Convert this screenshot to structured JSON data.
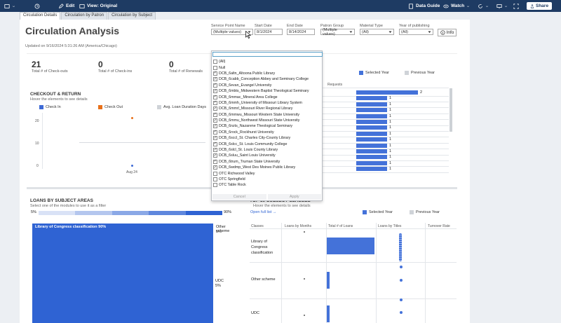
{
  "topbar": {
    "edit_label": "Edit",
    "view_label": "View: Original",
    "data_guide_label": "Data Guide",
    "watch_label": "Watch",
    "share_label": "Share"
  },
  "tabs": [
    {
      "label": "Circulation Details"
    },
    {
      "label": "Circulation by Patron"
    },
    {
      "label": "Circulation by Subject"
    }
  ],
  "header": {
    "title": "Circulation Analysis",
    "updated": "Updated on 9/16/2024 5:31:26 AM (America/Chicago)",
    "info_label": "Info"
  },
  "filters": {
    "service_point": {
      "label": "Service Point Name",
      "value": "(Multiple values)"
    },
    "start_date": {
      "label": "Start Date",
      "value": "8/1/2024"
    },
    "end_date": {
      "label": "End Date",
      "value": "8/14/2024"
    },
    "patron_group": {
      "label": "Patron Group",
      "value": "(Multiple values)"
    },
    "material_type": {
      "label": "Material Type",
      "value": "(All)"
    },
    "year_publishing": {
      "label": "Year of publishing",
      "value": "(All)"
    }
  },
  "kpis": [
    {
      "value": "21",
      "caption": "Total # of Check-outs"
    },
    {
      "value": "0",
      "caption": "Total # of Check-ins"
    },
    {
      "value": "0",
      "caption": "Total # of Renewals"
    }
  ],
  "checkout_return": {
    "title": "CHECKOUT & RETURN",
    "subtitle": "Hover the elements to see details",
    "legend": [
      {
        "label": "Check In",
        "color": "#3e6ad6"
      },
      {
        "label": "Check Out",
        "color": "#e8701a"
      },
      {
        "label": "Avg. Loan Duration Days",
        "color": "#cfd3d8"
      }
    ],
    "y_ticks": [
      "20",
      "10",
      "0"
    ],
    "x_tick": "Aug 24"
  },
  "requests": {
    "legend": [
      {
        "label": "Selected Year",
        "color": "#4472d9"
      },
      {
        "label": "Previous Year",
        "color": "#cfd3d8"
      }
    ],
    "column_header": "Requests",
    "values": [
      "2",
      "1",
      "1",
      "1",
      "1",
      "1",
      "1",
      "1",
      "1",
      "1",
      "1",
      "1",
      "1",
      "1"
    ]
  },
  "dropdown": {
    "items": [
      {
        "label": "(All)",
        "checked": false
      },
      {
        "label": "Null",
        "checked": false
      },
      {
        "label": "DCB_6altn_Altoona Public Library",
        "checked": true
      },
      {
        "label": "DCB_6cabb_Conception Abbey and Seminary College",
        "checked": true
      },
      {
        "label": "DCB_6evan_Evangel University",
        "checked": true
      },
      {
        "label": "DCB_6mbts_Midwestern Baptist Theological Seminary",
        "checked": true
      },
      {
        "label": "DCB_6mmac_Mineral Area College",
        "checked": true
      },
      {
        "label": "DCB_6mmh_University of Missouri Library System",
        "checked": true
      },
      {
        "label": "DCB_6mmrl_Missouri River Regional Library",
        "checked": true
      },
      {
        "label": "DCB_6mmwu_Missouri Western State University",
        "checked": true
      },
      {
        "label": "DCB_6mmu_Northwest Missouri State University",
        "checked": true
      },
      {
        "label": "DCB_6nzts_Nazarene Theological Seminary",
        "checked": true
      },
      {
        "label": "DCB_6rock_Rockhurst University",
        "checked": true
      },
      {
        "label": "DCB_6sccl_St. Charles City-County Library",
        "checked": true
      },
      {
        "label": "DCB_6slcc_St. Louis Community College",
        "checked": true
      },
      {
        "label": "DCB_6slcl_St. Louis County Library",
        "checked": true
      },
      {
        "label": "DCB_6sluu_Saint Louis University",
        "checked": true
      },
      {
        "label": "DCB_6trum_Truman State University",
        "checked": true
      },
      {
        "label": "DCB_6wdmp_West Des Moines Public Library",
        "checked": true
      },
      {
        "label": "OTC Richwood Valley",
        "checked": false
      },
      {
        "label": "OTC Springfield",
        "checked": false
      },
      {
        "label": "OTC Table Rock",
        "checked": false
      }
    ],
    "cancel_label": "Cancel",
    "apply_label": "Apply"
  },
  "loans_subject": {
    "title": "LOANS BY SUBJECT AREAS",
    "subtitle": "Select one of the modules to use it as a filter",
    "scale_min": "5%",
    "scale_max": "90%",
    "block_label": "Library of Congress classification 90%",
    "side_labels": [
      {
        "name": "Other scheme",
        "pct": "5%"
      },
      {
        "name": "UDC",
        "pct": "5%"
      }
    ]
  },
  "top10": {
    "title": "TOP 10 SUBJECT CLASSES",
    "subtitle": "Hover the elements to see details",
    "link_label": "Open full list →",
    "legend": [
      {
        "label": "Selected Year",
        "color": "#4472d9"
      },
      {
        "label": "Previous Year",
        "color": "#cfd3d8"
      }
    ],
    "columns": [
      "Classes",
      "Loans by Months",
      "Total # of Loans",
      "Loans by Titles",
      "Turnover Rate"
    ],
    "rows": [
      {
        "label": "Library of Congress classification"
      },
      {
        "label": "Other scheme"
      },
      {
        "label": "UDC"
      }
    ]
  }
}
